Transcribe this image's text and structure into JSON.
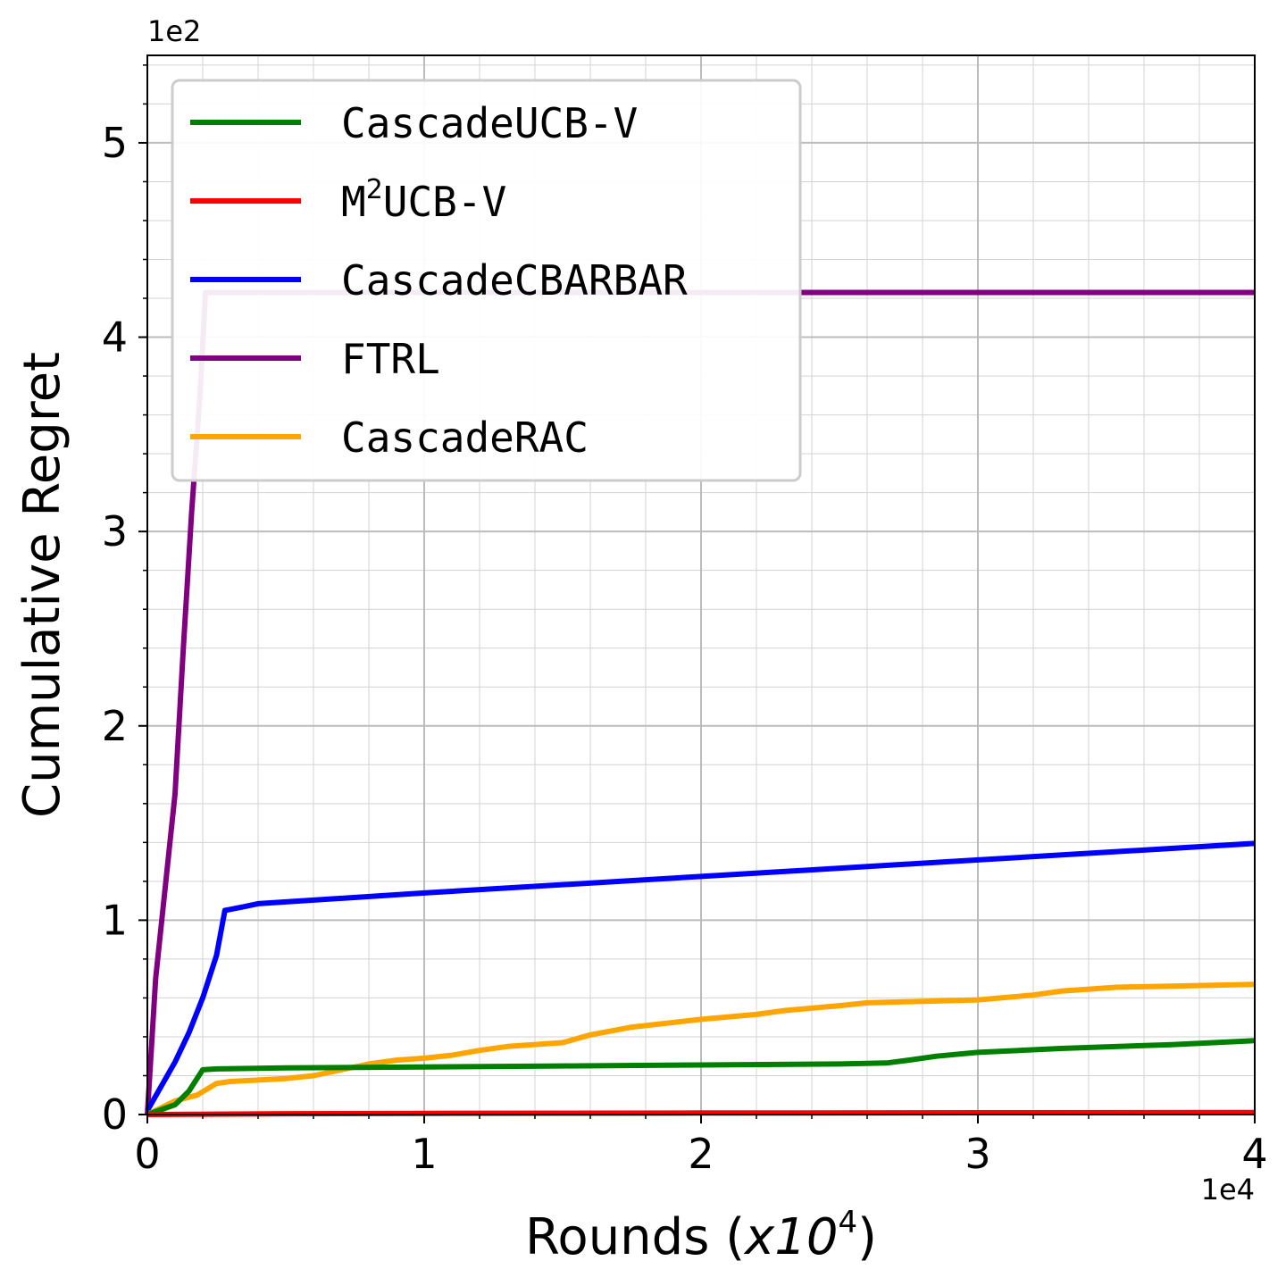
{
  "chart_data": {
    "type": "line",
    "xlabel": "Rounds (",
    "xlabel_math": "x10",
    "xlabel_exp": "4",
    "xlabel_close": ")",
    "ylabel": "Cumulative Regret",
    "x_offset_text": "1e4",
    "y_offset_text": "1e2",
    "xlim": [
      0,
      4
    ],
    "ylim": [
      0,
      5.45
    ],
    "xticks": [
      "0",
      "1",
      "2",
      "3",
      "4"
    ],
    "yticks": [
      "0",
      "1",
      "2",
      "3",
      "4",
      "5"
    ],
    "grid": true,
    "legend_position": "upper-left",
    "series": [
      {
        "name": "CascadeUCB-V",
        "color": "#008000",
        "points": [
          [
            0,
            0
          ],
          [
            0.1,
            0.05
          ],
          [
            0.15,
            0.12
          ],
          [
            0.2,
            0.23
          ],
          [
            0.25,
            0.235
          ],
          [
            0.5,
            0.24
          ],
          [
            1.0,
            0.245
          ],
          [
            1.5,
            0.25
          ],
          [
            2.0,
            0.255
          ],
          [
            2.5,
            0.26
          ],
          [
            2.67,
            0.265
          ],
          [
            2.75,
            0.28
          ],
          [
            2.85,
            0.3
          ],
          [
            3.0,
            0.32
          ],
          [
            3.3,
            0.34
          ],
          [
            3.7,
            0.36
          ],
          [
            4.0,
            0.38
          ]
        ]
      },
      {
        "name": "M²UCB-V",
        "name_base": "M",
        "name_sup": "2",
        "name_rest": "UCB-V",
        "color": "#ff0000",
        "points": [
          [
            0,
            0
          ],
          [
            0.5,
            0.004
          ],
          [
            1.0,
            0.006
          ],
          [
            2.0,
            0.008
          ],
          [
            3.0,
            0.009
          ],
          [
            4.0,
            0.01
          ]
        ]
      },
      {
        "name": "CascadeCBARBAR",
        "color": "#0000ff",
        "points": [
          [
            0,
            0.02
          ],
          [
            0.1,
            0.27
          ],
          [
            0.15,
            0.42
          ],
          [
            0.2,
            0.6
          ],
          [
            0.25,
            0.82
          ],
          [
            0.28,
            1.05
          ],
          [
            0.35,
            1.07
          ],
          [
            0.4,
            1.085
          ],
          [
            1.0,
            1.14
          ],
          [
            2.0,
            1.225
          ],
          [
            3.0,
            1.31
          ],
          [
            4.0,
            1.395
          ]
        ]
      },
      {
        "name": "FTRL",
        "color": "#800080",
        "points": [
          [
            0,
            0
          ],
          [
            0.03,
            0.7
          ],
          [
            0.1,
            1.65
          ],
          [
            0.13,
            2.4
          ],
          [
            0.16,
            3.1
          ],
          [
            0.19,
            3.7
          ],
          [
            0.21,
            4.23
          ],
          [
            4.0,
            4.23
          ]
        ]
      },
      {
        "name": "CascadeRAC",
        "color": "#ffa500",
        "points": [
          [
            0,
            0
          ],
          [
            0.1,
            0.07
          ],
          [
            0.18,
            0.1
          ],
          [
            0.25,
            0.16
          ],
          [
            0.3,
            0.17
          ],
          [
            0.5,
            0.185
          ],
          [
            0.6,
            0.2
          ],
          [
            0.7,
            0.23
          ],
          [
            0.8,
            0.26
          ],
          [
            0.9,
            0.28
          ],
          [
            1.0,
            0.29
          ],
          [
            1.1,
            0.305
          ],
          [
            1.2,
            0.33
          ],
          [
            1.3,
            0.35
          ],
          [
            1.5,
            0.37
          ],
          [
            1.6,
            0.41
          ],
          [
            1.75,
            0.45
          ],
          [
            2.0,
            0.49
          ],
          [
            2.2,
            0.515
          ],
          [
            2.3,
            0.535
          ],
          [
            2.5,
            0.56
          ],
          [
            2.6,
            0.575
          ],
          [
            3.0,
            0.59
          ],
          [
            3.2,
            0.615
          ],
          [
            3.3,
            0.635
          ],
          [
            3.5,
            0.655
          ],
          [
            4.0,
            0.67
          ]
        ]
      }
    ]
  }
}
